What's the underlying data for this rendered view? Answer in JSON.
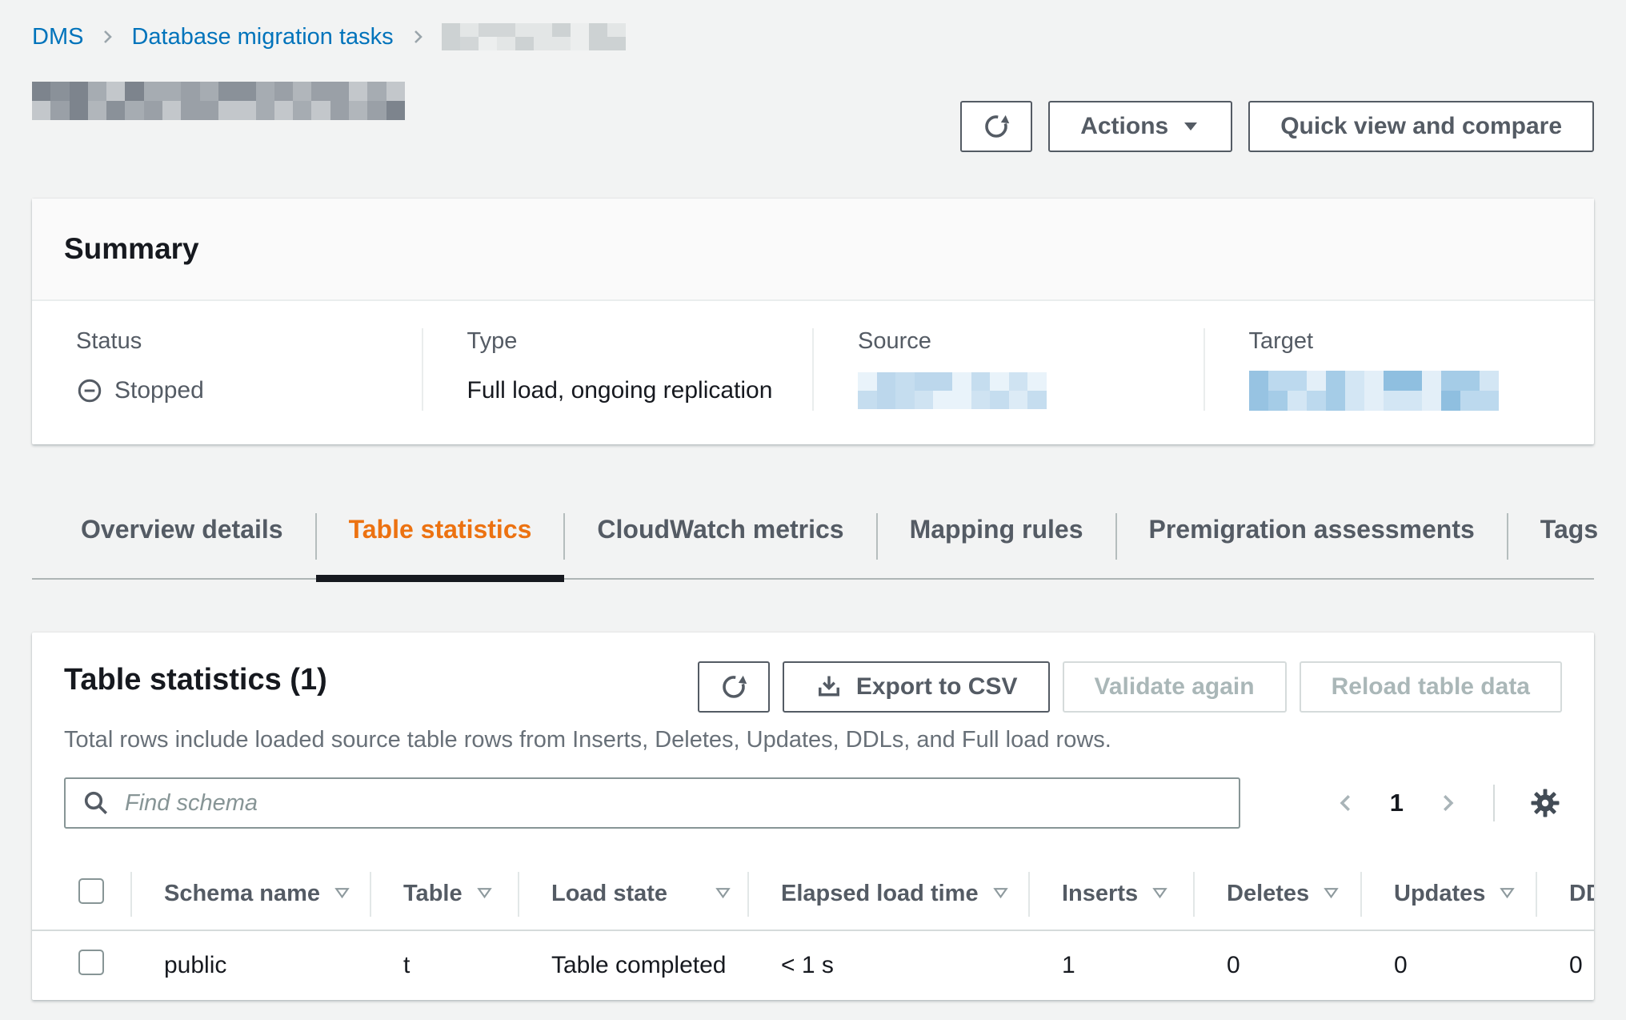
{
  "breadcrumb": {
    "links": [
      {
        "label": "DMS"
      },
      {
        "label": "Database migration tasks"
      }
    ]
  },
  "page_header": {
    "actions_label": "Actions",
    "quick_view_label": "Quick view and compare"
  },
  "summary": {
    "title": "Summary",
    "status_label": "Status",
    "status_value": "Stopped",
    "type_label": "Type",
    "type_value": "Full load, ongoing replication",
    "source_label": "Source",
    "target_label": "Target"
  },
  "tabs": [
    {
      "label": "Overview details",
      "active": false
    },
    {
      "label": "Table statistics",
      "active": true
    },
    {
      "label": "CloudWatch metrics",
      "active": false
    },
    {
      "label": "Mapping rules",
      "active": false
    },
    {
      "label": "Premigration assessments",
      "active": false
    },
    {
      "label": "Tags",
      "active": false
    }
  ],
  "table_section": {
    "title": "Table statistics (1)",
    "description": "Total rows include loaded source table rows from Inserts, Deletes, Updates, DDLs, and Full load rows.",
    "export_label": "Export to CSV",
    "validate_label": "Validate again",
    "reload_label": "Reload table data",
    "search_placeholder": "Find schema",
    "pagination": {
      "current_page": "1"
    }
  },
  "table": {
    "columns": [
      {
        "label": "Schema name"
      },
      {
        "label": "Table"
      },
      {
        "label": "Load state"
      },
      {
        "label": "Elapsed load time"
      },
      {
        "label": "Inserts"
      },
      {
        "label": "Deletes"
      },
      {
        "label": "Updates"
      },
      {
        "label": "DDLs"
      }
    ],
    "rows": [
      {
        "schema": "public",
        "table": "t",
        "load_state": "Table completed",
        "elapsed": "< 1 s",
        "inserts": "1",
        "deletes": "0",
        "updates": "0",
        "ddls": "0"
      }
    ]
  },
  "colors": {
    "accent_orange": "#ec7211",
    "link_blue": "#0073bb",
    "secondary_text": "#545b64",
    "disabled_text": "#aab7b8",
    "page_background": "#f2f3f3"
  },
  "redaction_palettes": {
    "gray_light": [
      "#d8dbdb",
      "#e3e6e6",
      "#cdd2d3",
      "#eceeee",
      "#d2d6d7"
    ],
    "gray_dark": [
      "#9aa0a7",
      "#8a9199",
      "#b1b6bb",
      "#7d848d",
      "#c3c7cb",
      "#a6acb2"
    ],
    "blue_light": [
      "#cfe3f2",
      "#bcd7ec",
      "#dcebf6",
      "#e9f3fa",
      "#c5ddef"
    ],
    "blue": [
      "#8fbfe0",
      "#a5cce7",
      "#bcd9ee",
      "#d3e6f4",
      "#97c3e2",
      "#e3eff8"
    ]
  }
}
